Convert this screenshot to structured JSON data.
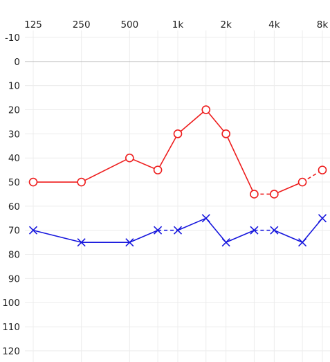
{
  "chart_data": {
    "type": "line",
    "title": "",
    "xlabel": "",
    "ylabel": "",
    "x_scale": "log2",
    "y_inverted": true,
    "grid": true,
    "x": [
      125,
      250,
      500,
      750,
      1000,
      1500,
      2000,
      3000,
      4000,
      6000,
      8000
    ],
    "x_tick_values": [
      125,
      250,
      500,
      1000,
      2000,
      4000,
      8000
    ],
    "x_tick_labels": [
      "125",
      "250",
      "500",
      "1k",
      "2k",
      "4k",
      "8k"
    ],
    "y_ticks": [
      -10,
      0,
      10,
      20,
      30,
      40,
      50,
      60,
      70,
      80,
      90,
      100,
      110,
      120
    ],
    "ylim": [
      -10,
      120
    ],
    "series": [
      {
        "marker": "circle",
        "color": "#ee1c1c",
        "values": [
          50,
          50,
          40,
          45,
          30,
          20,
          30,
          55,
          55,
          50,
          45
        ],
        "dashed_segments": [
          [
            7,
            8
          ],
          [
            9,
            10
          ]
        ]
      },
      {
        "marker": "cross",
        "color": "#1515dd",
        "values": [
          70,
          75,
          75,
          70,
          70,
          65,
          75,
          70,
          70,
          75,
          65
        ],
        "dashed_segments": [
          [
            3,
            4
          ],
          [
            7,
            8
          ]
        ]
      }
    ]
  }
}
